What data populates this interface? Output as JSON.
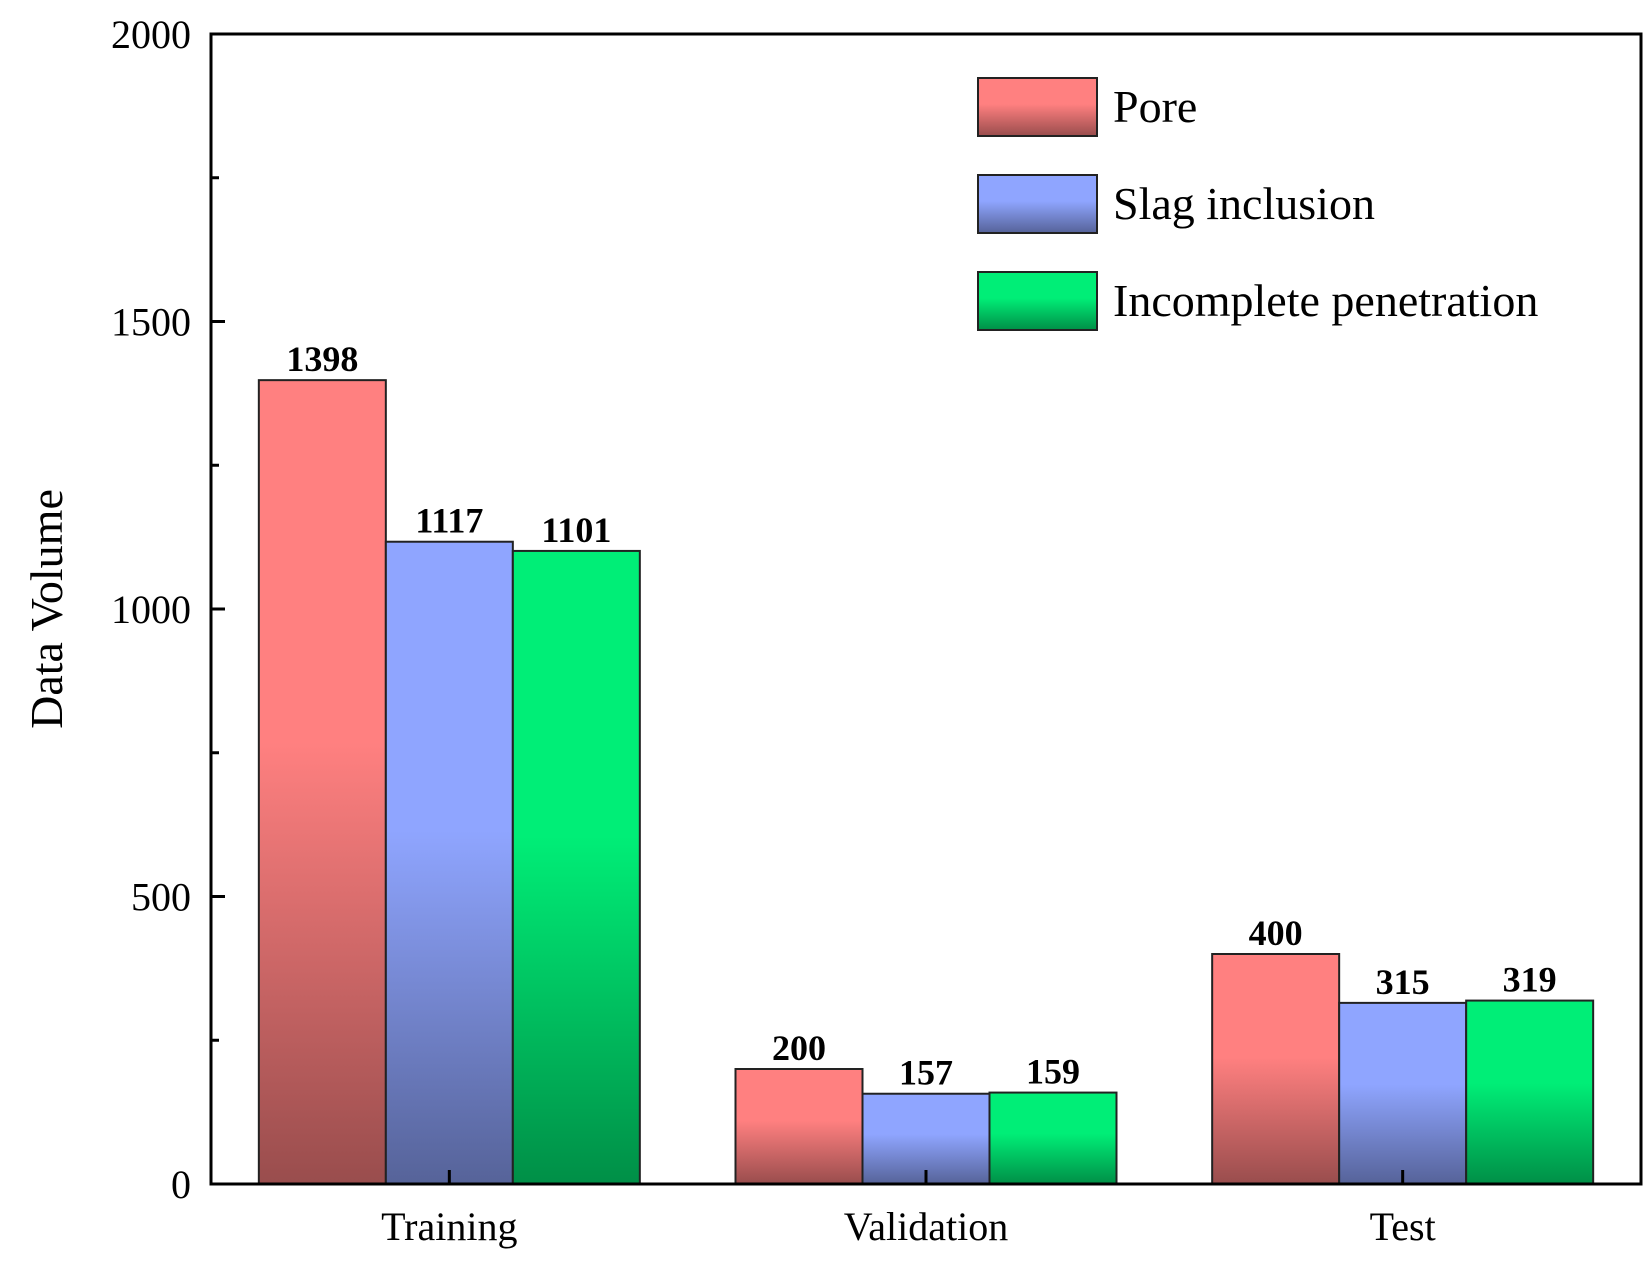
{
  "chart_data": {
    "type": "bar",
    "title": "",
    "xlabel": "",
    "ylabel": "Data Volume",
    "ylim": [
      0,
      2000
    ],
    "yticks": [
      0,
      500,
      1000,
      1500,
      2000
    ],
    "grid": false,
    "legend_position": "top-right",
    "categories": [
      "Training",
      "Validation",
      "Test"
    ],
    "series": [
      {
        "name": "Pore",
        "color": "#ff8080",
        "values": [
          1398,
          200,
          400
        ],
        "labels": [
          "1398",
          "200",
          "400"
        ]
      },
      {
        "name": "Slag inclusion",
        "color": "#8fa5ff",
        "values": [
          1117,
          157,
          315
        ],
        "labels": [
          "1117",
          "157",
          "315"
        ]
      },
      {
        "name": "Incomplete penetration",
        "color": "#00ee77",
        "values": [
          1101,
          159,
          319
        ],
        "labels": [
          "1101",
          "159",
          "319"
        ]
      }
    ]
  }
}
